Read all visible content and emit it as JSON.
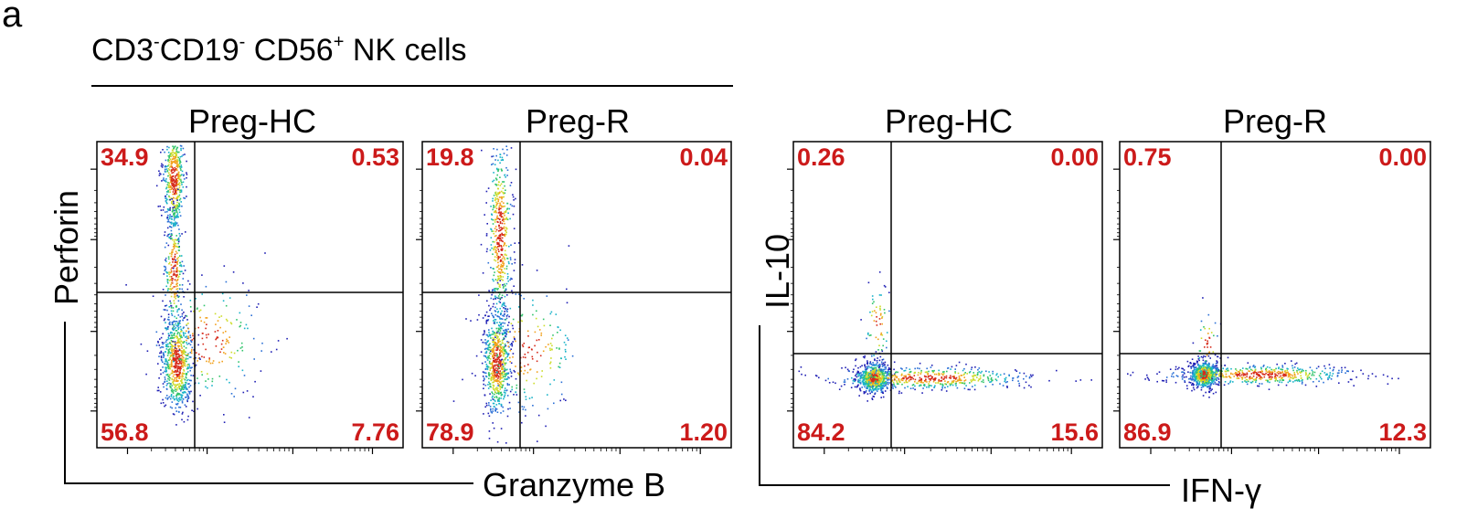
{
  "panel_letter": "a",
  "header": {
    "title_parts": [
      "CD3",
      "-",
      "CD19",
      "-",
      " CD56",
      "+",
      " NK cells"
    ]
  },
  "groups": [
    {
      "x_axis_label": "Granzyme B",
      "y_axis_label": "Perforin"
    },
    {
      "x_axis_label": "IFN-γ",
      "y_axis_label": "IL-10"
    }
  ],
  "chart_data": [
    {
      "type": "scatter",
      "subtype": "flow-cytometry-density-dot-plot",
      "title": "Preg-HC",
      "xlabel": "Granzyme B",
      "ylabel": "Perforin",
      "quadrants": {
        "top_left": "34.9",
        "top_right": "0.53",
        "bottom_left": "56.8",
        "bottom_right": "7.76"
      }
    },
    {
      "type": "scatter",
      "subtype": "flow-cytometry-density-dot-plot",
      "title": "Preg-R",
      "xlabel": "Granzyme B",
      "ylabel": "Perforin",
      "quadrants": {
        "top_left": "19.8",
        "top_right": "0.04",
        "bottom_left": "78.9",
        "bottom_right": "1.20"
      }
    },
    {
      "type": "scatter",
      "subtype": "flow-cytometry-density-dot-plot",
      "title": "Preg-HC",
      "xlabel": "IFN-γ",
      "ylabel": "IL-10",
      "quadrants": {
        "top_left": "0.26",
        "top_right": "0.00",
        "bottom_left": "84.2",
        "bottom_right": "15.6"
      }
    },
    {
      "type": "scatter",
      "subtype": "flow-cytometry-density-dot-plot",
      "title": "Preg-R",
      "xlabel": "IFN-γ",
      "ylabel": "IL-10",
      "quadrants": {
        "top_left": "0.75",
        "top_right": "0.00",
        "bottom_left": "86.9",
        "bottom_right": "12.3"
      }
    }
  ],
  "colors": {
    "density_scale": [
      "#1f1fb4",
      "#2a6fd6",
      "#19b3c9",
      "#31c46b",
      "#cddc2a",
      "#f2a11c",
      "#d62a1a"
    ],
    "quadrant_numbers": "#cc1a1a"
  }
}
